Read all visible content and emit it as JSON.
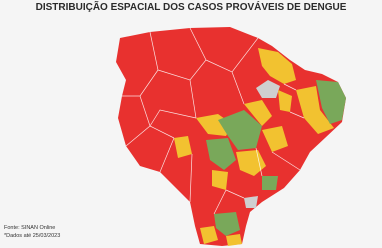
{
  "header": {
    "title": "DISTRIBUIÇÃO ESPACIAL DOS CASOS PROVÁVEIS DE DENGUE"
  },
  "footer": {
    "source": "Fonte: SINAN Online",
    "note": "*Dados até 25/03/2023"
  }
}
